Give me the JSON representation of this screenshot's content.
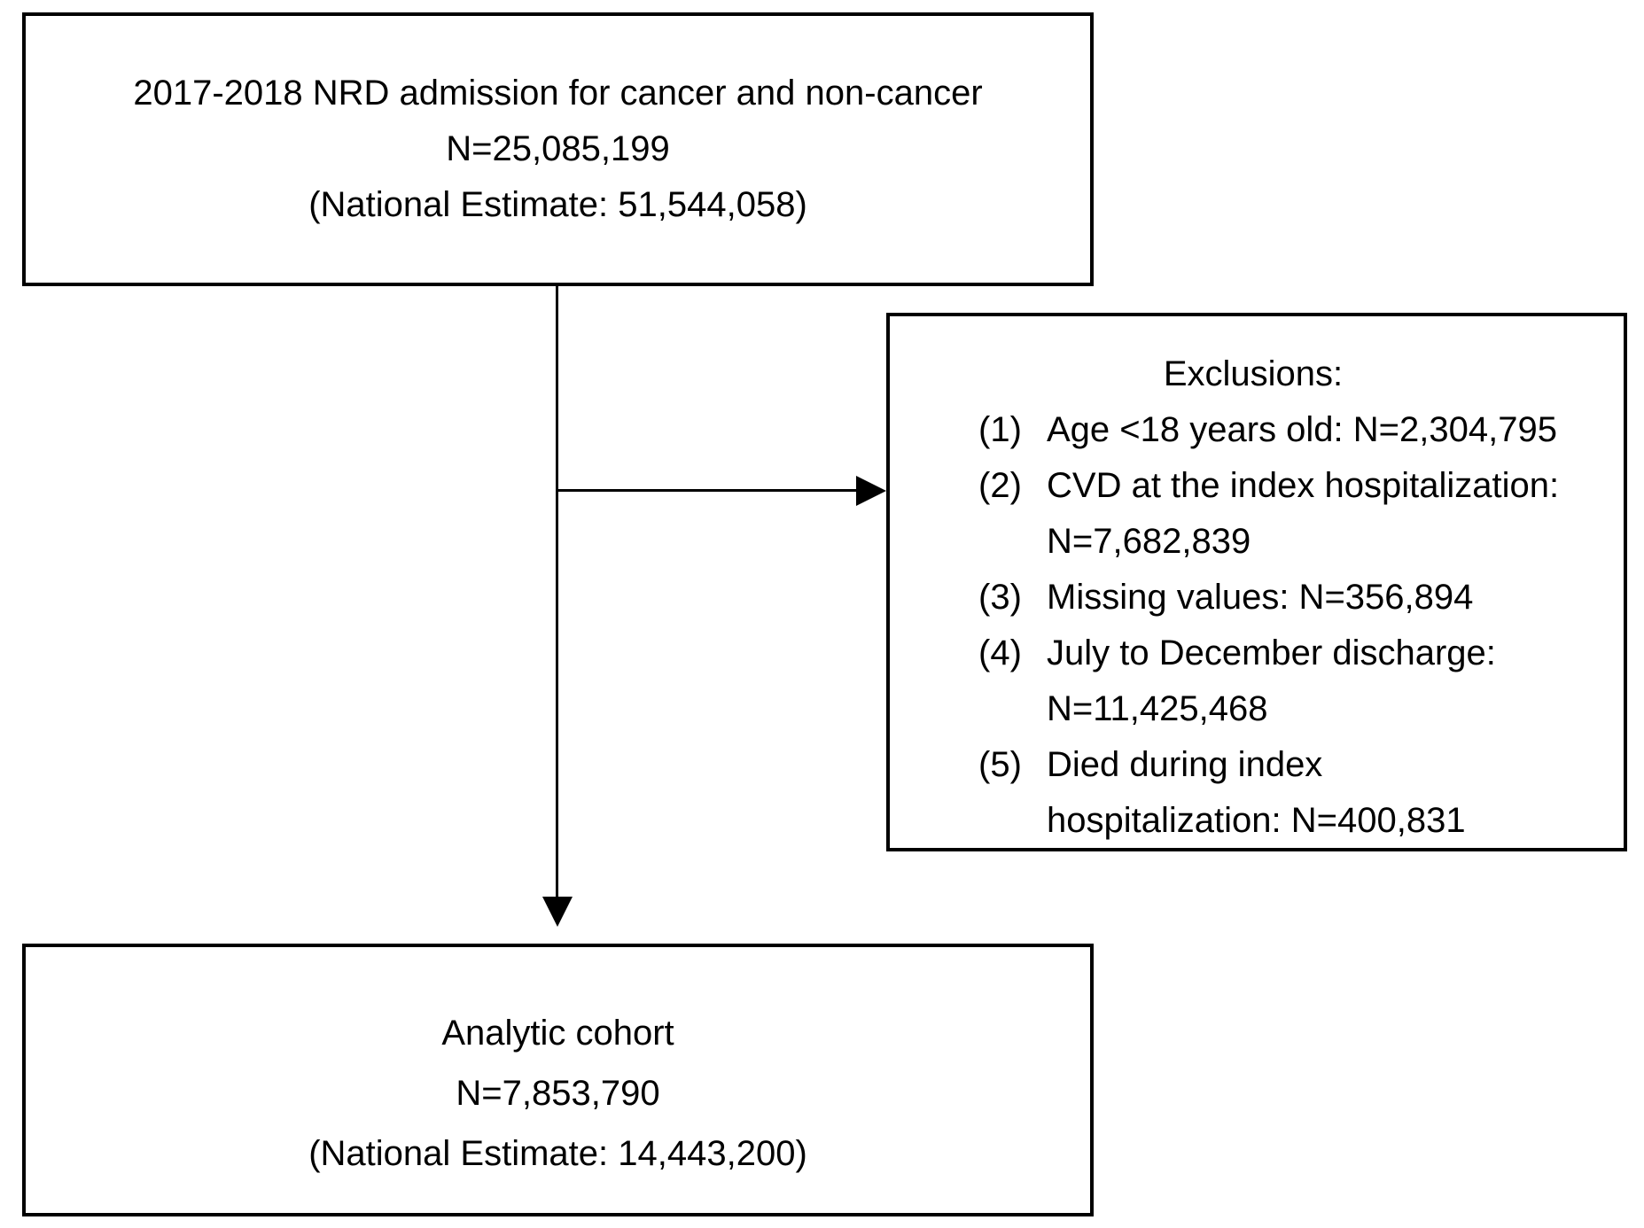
{
  "diagram": {
    "top_box": {
      "lines": [
        "2017-2018 NRD admission for cancer and non-cancer",
        "N=25,085,199",
        "(National Estimate: 51,544,058)"
      ]
    },
    "exclusions_box": {
      "title": "Exclusions:",
      "items": [
        {
          "number": "(1)",
          "lines": [
            "Age <18 years old: N=2,304,795"
          ]
        },
        {
          "number": "(2)",
          "lines": [
            "CVD at the index hospitalization:",
            "N=7,682,839"
          ]
        },
        {
          "number": "(3)",
          "lines": [
            "Missing values: N=356,894"
          ]
        },
        {
          "number": "(4)",
          "lines": [
            "July to December discharge:",
            "N=11,425,468"
          ]
        },
        {
          "number": "(5)",
          "lines": [
            "Died during index",
            "hospitalization: N=400,831"
          ]
        }
      ]
    },
    "bottom_box": {
      "lines": [
        "Analytic cohort",
        "N=7,853,790",
        "(National Estimate: 14,443,200)"
      ]
    },
    "colors": {
      "line": "#000000",
      "text": "#000000",
      "background": "#ffffff"
    }
  }
}
